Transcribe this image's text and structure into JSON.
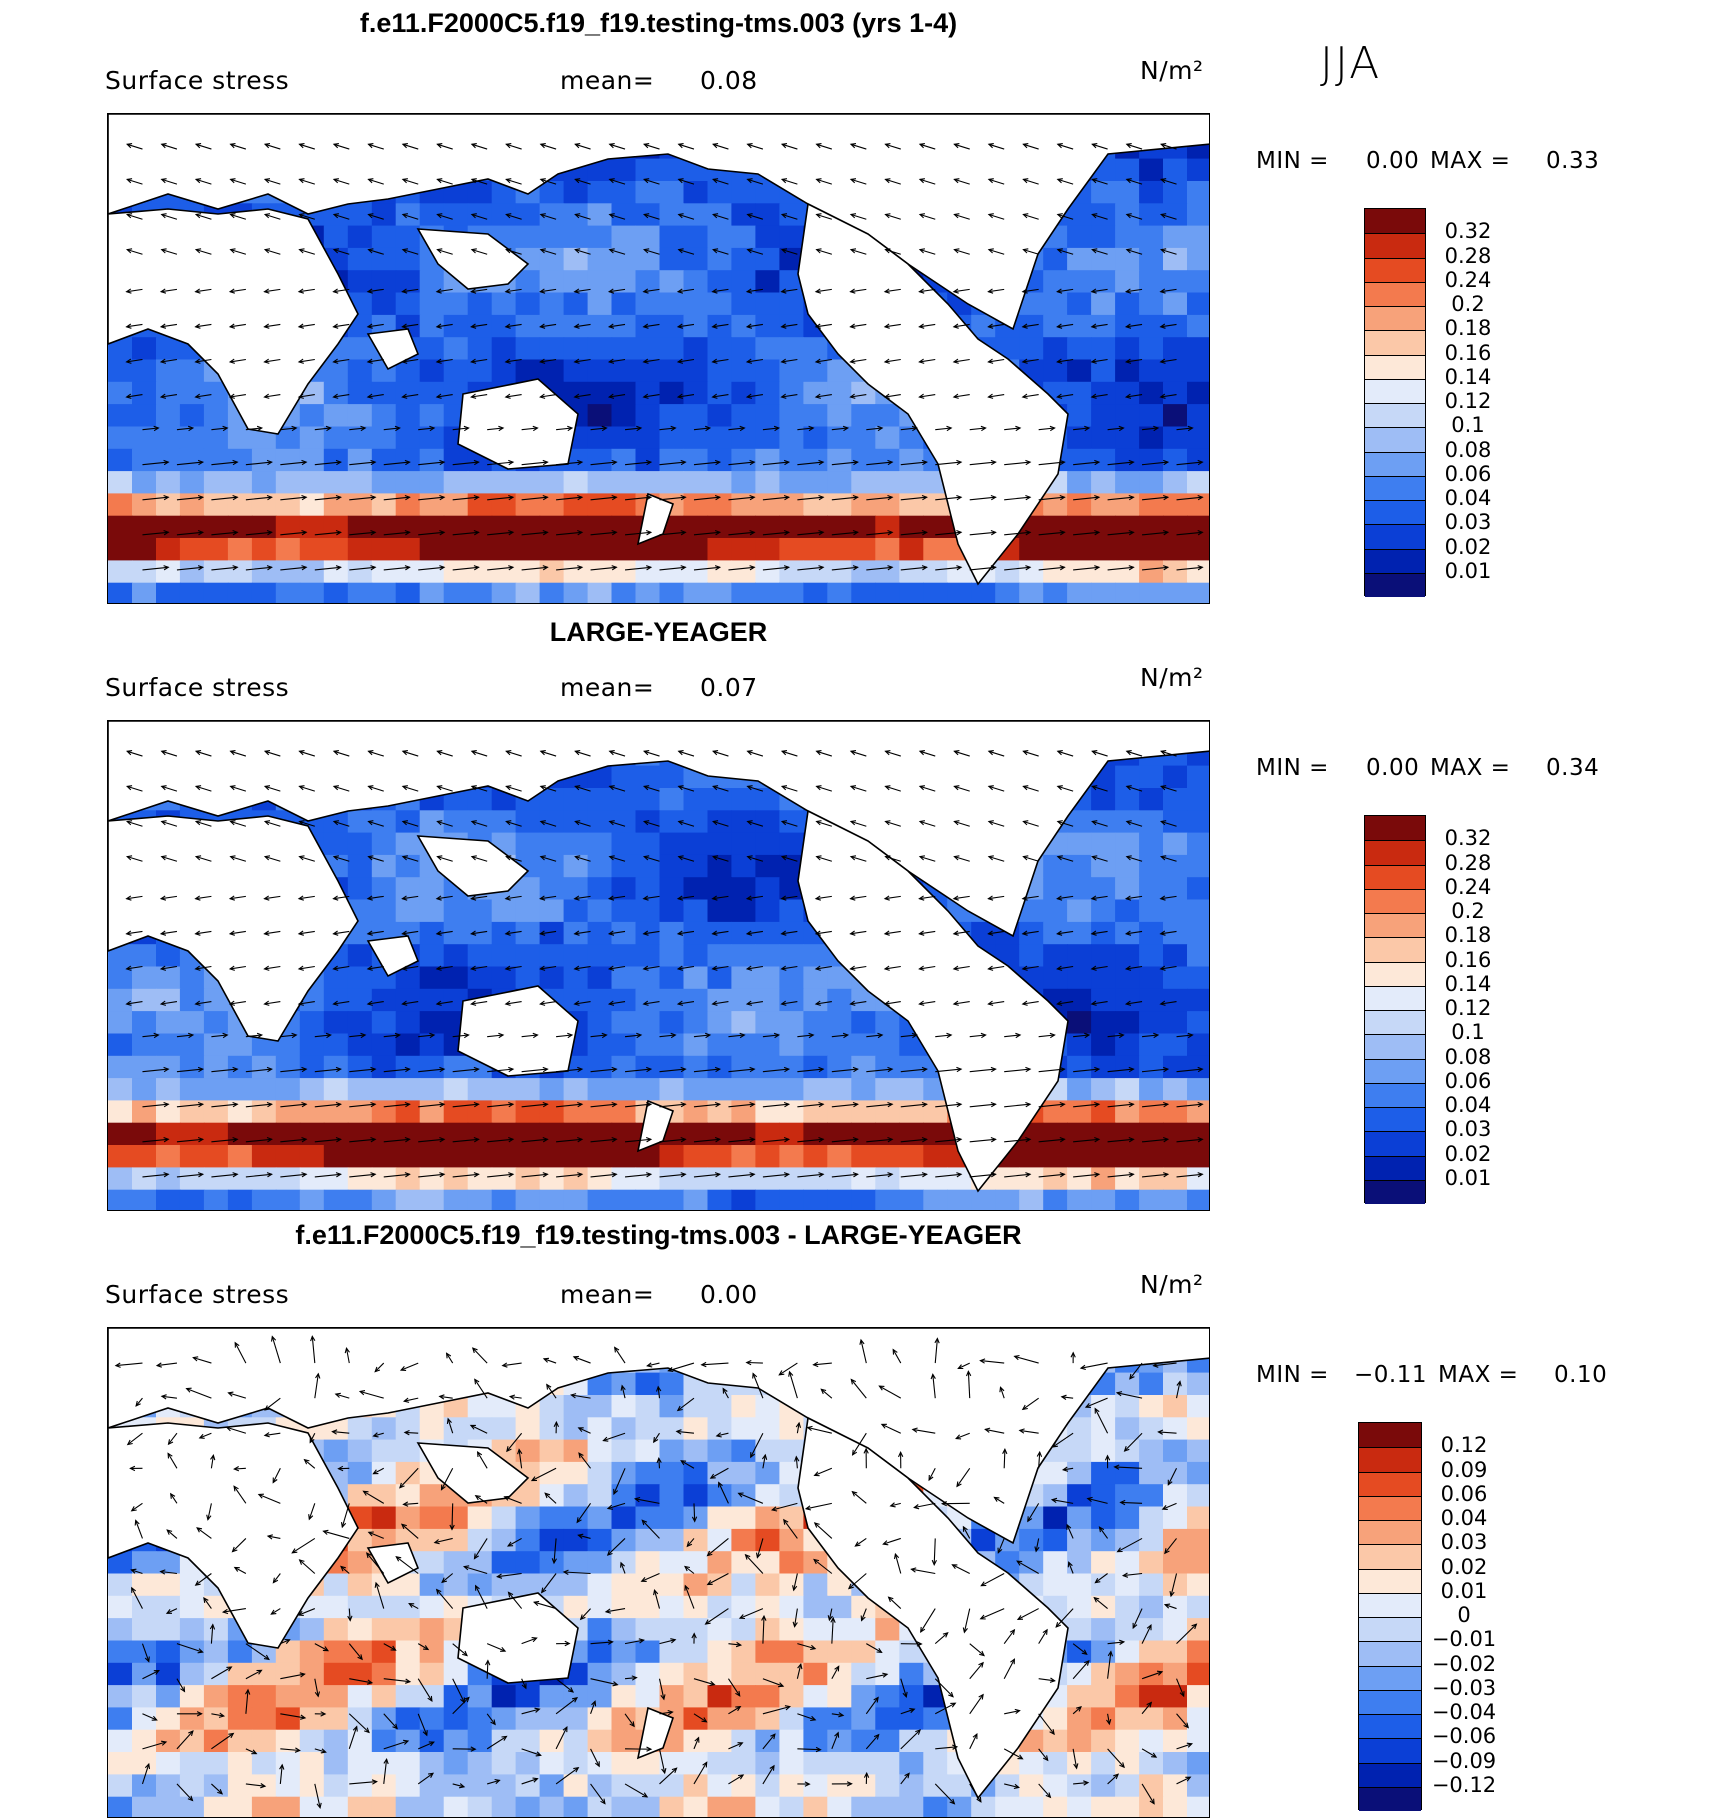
{
  "season": "JJA",
  "palette_pos": [
    "#0a0f78",
    "#0022b0",
    "#0b3fd6",
    "#1d5ee8",
    "#3e7ef0",
    "#6d9ff3",
    "#9ebdf5",
    "#c6d8f7",
    "#e3ebfa",
    "#fde8d8",
    "#fbc8a8",
    "#f7a27a",
    "#f37a4e",
    "#e54b22",
    "#c92a10",
    "#7a0a0a"
  ],
  "palette_diff": [
    "#0a0f78",
    "#0022b0",
    "#0b3fd6",
    "#1d5ee8",
    "#3e7ef0",
    "#6d9ff3",
    "#9ebdf5",
    "#c6d8f7",
    "#e3ebfa",
    "#fde8d8",
    "#fbc8a8",
    "#f7a27a",
    "#f37a4e",
    "#e54b22",
    "#c92a10",
    "#7a0a0a"
  ],
  "panels": [
    {
      "title": "f.e11.F2000C5.f19_f19.testing-tms.003 (yrs 1-4)",
      "variable": "Surface stress",
      "mean_label": "mean=",
      "mean_value": "0.08",
      "units": "N/m²",
      "min_label": "MIN =",
      "min_value": "0.00",
      "max_label": "MAX =",
      "max_value": "0.33",
      "kind": "field",
      "colorbar_ticks": [
        "0.32",
        "0.28",
        "0.24",
        "0.2",
        "0.18",
        "0.16",
        "0.14",
        "0.12",
        "0.1",
        "0.08",
        "0.06",
        "0.04",
        "0.03",
        "0.02",
        "0.01"
      ]
    },
    {
      "title": "LARGE-YEAGER",
      "variable": "Surface stress",
      "mean_label": "mean=",
      "mean_value": "0.07",
      "units": "N/m²",
      "min_label": "MIN =",
      "min_value": "0.00",
      "max_label": "MAX =",
      "max_value": "0.34",
      "kind": "field",
      "colorbar_ticks": [
        "0.32",
        "0.28",
        "0.24",
        "0.2",
        "0.18",
        "0.16",
        "0.14",
        "0.12",
        "0.1",
        "0.08",
        "0.06",
        "0.04",
        "0.03",
        "0.02",
        "0.01"
      ]
    },
    {
      "title": "f.e11.F2000C5.f19_f19.testing-tms.003 - LARGE-YEAGER",
      "variable": "Surface stress",
      "mean_label": "mean=",
      "mean_value": "0.00",
      "units": "N/m²",
      "min_label": "MIN =",
      "min_value": "−0.11",
      "max_label": "MAX =",
      "max_value": "0.10",
      "kind": "diff",
      "colorbar_ticks": [
        "0.12",
        "0.09",
        "0.06",
        "0.04",
        "0.03",
        "0.02",
        "0.01",
        "0",
        "−0.01",
        "−0.02",
        "−0.03",
        "−0.04",
        "−0.06",
        "−0.09",
        "−0.12"
      ]
    }
  ]
}
